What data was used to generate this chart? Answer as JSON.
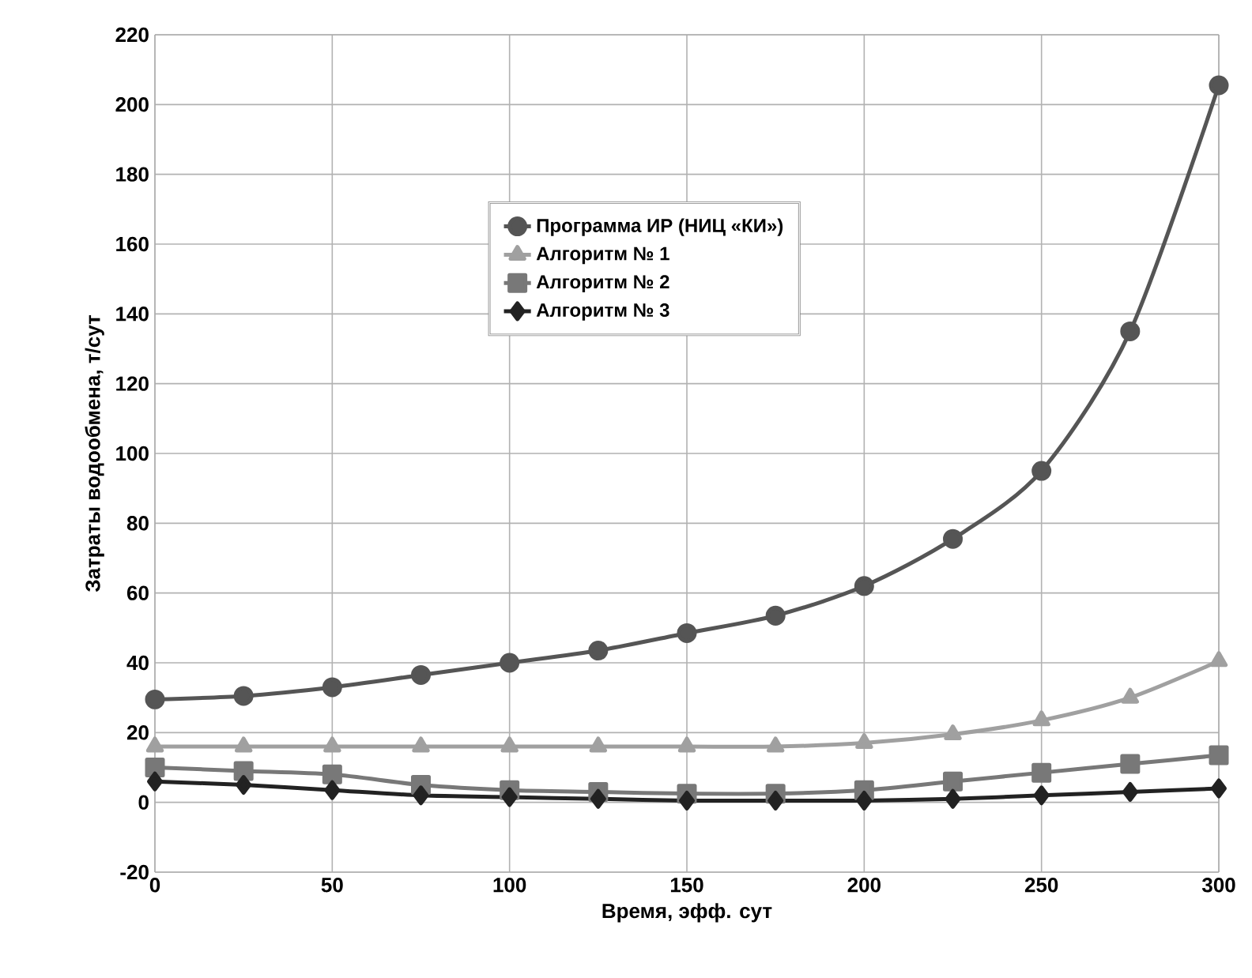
{
  "chart_data": {
    "type": "line",
    "xlabel": "Время, эфф. сут",
    "ylabel": "Затраты водообмена, т/сут",
    "x": [
      0,
      25,
      50,
      75,
      100,
      125,
      150,
      175,
      200,
      225,
      250,
      275,
      300
    ],
    "series": [
      {
        "name": "Программа ИР (НИЦ «КИ»)",
        "color": "#555555",
        "marker": "circle",
        "values": [
          29.5,
          30.5,
          33,
          36.5,
          40,
          43.5,
          48.5,
          53.5,
          62,
          75.5,
          95,
          135,
          205.5
        ]
      },
      {
        "name": "Алгоритм  № 1",
        "color": "#a0a0a0",
        "marker": "triangle",
        "values": [
          16,
          16,
          16,
          16,
          16,
          16,
          16,
          16,
          17,
          19.5,
          23.5,
          30,
          40.5
        ]
      },
      {
        "name": "Алгоритм  № 2",
        "color": "#787878",
        "marker": "square",
        "values": [
          10,
          9,
          8,
          5,
          3.5,
          3,
          2.5,
          2.5,
          3.5,
          6,
          8.5,
          11,
          13.5
        ]
      },
      {
        "name": "Алгоритм  № 3",
        "color": "#222222",
        "marker": "diamond",
        "values": [
          6,
          5,
          3.5,
          2,
          1.5,
          1,
          0.5,
          0.5,
          0.5,
          1,
          2,
          3,
          4
        ]
      }
    ],
    "xlim": [
      0,
      300
    ],
    "xticks": [
      0,
      50,
      100,
      150,
      200,
      250,
      300
    ],
    "ylim": [
      -20,
      220
    ],
    "yticks": [
      -20,
      0,
      20,
      40,
      60,
      80,
      100,
      120,
      140,
      160,
      180,
      200,
      220
    ],
    "grid": true,
    "legend": "top"
  }
}
